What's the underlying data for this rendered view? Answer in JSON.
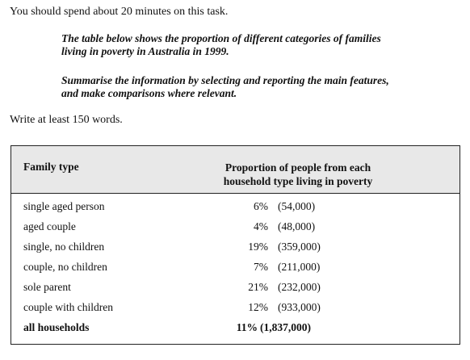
{
  "instruction": "You should spend about 20 minutes on this task.",
  "task": {
    "paragraph1": [
      "The table below shows the proportion of different categories of families",
      "living in poverty in Australia in 1999."
    ],
    "paragraph2": [
      "Summarise the information by selecting and reporting the main features,",
      "and make comparisons where relevant."
    ]
  },
  "word_count": "Write at least 150 words.",
  "table": {
    "headers": {
      "family_type": "Family type",
      "proportion": [
        "Proportion of people from each",
        "household type living in poverty"
      ]
    },
    "rows": [
      {
        "family": "single aged person",
        "percent": "6%",
        "count": "(54,000)"
      },
      {
        "family": "aged couple",
        "percent": "4%",
        "count": "(48,000)"
      },
      {
        "family": "single, no children",
        "percent": "19%",
        "count": "(359,000)"
      },
      {
        "family": "couple, no children",
        "percent": "7%",
        "count": "(211,000)"
      },
      {
        "family": "sole parent",
        "percent": "21%",
        "count": "(232,000)"
      },
      {
        "family": "couple with children",
        "percent": "12%",
        "count": "(933,000)"
      }
    ],
    "total": {
      "family": "all households",
      "percent": "11%",
      "count": "(1,837,000)"
    }
  }
}
